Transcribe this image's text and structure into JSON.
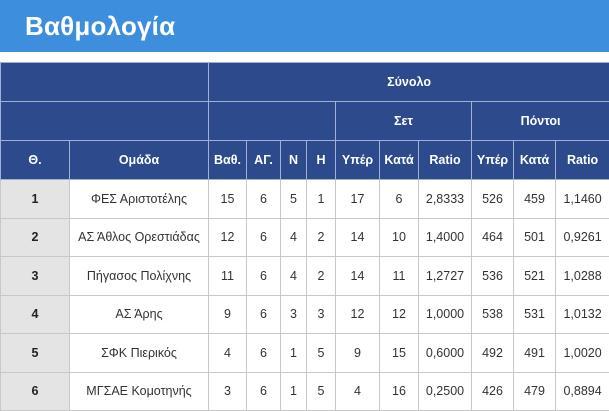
{
  "page": {
    "title": "Βαθμολογία"
  },
  "table": {
    "group_total": "Σύνολο",
    "group_sets": "Σετ",
    "group_points": "Πόντοι",
    "columns": {
      "pos": "Θ.",
      "team": "Ομάδα",
      "pts": "Βαθ.",
      "played": "ΑΓ.",
      "won": "Ν",
      "lost": "Η",
      "sets_for": "Υπέρ",
      "sets_against": "Κατά",
      "sets_ratio": "Ratio",
      "points_for": "Υπέρ",
      "points_against": "Κατά",
      "points_ratio": "Ratio"
    },
    "rows": [
      {
        "pos": "1",
        "team": "ΦΕΣ Αριστοτέλης",
        "pts": "15",
        "played": "6",
        "won": "5",
        "lost": "1",
        "sets_for": "17",
        "sets_against": "6",
        "sets_ratio": "2,8333",
        "points_for": "526",
        "points_against": "459",
        "points_ratio": "1,1460"
      },
      {
        "pos": "2",
        "team": "ΑΣ Άθλος Ορεστιάδας",
        "pts": "12",
        "played": "6",
        "won": "4",
        "lost": "2",
        "sets_for": "14",
        "sets_against": "10",
        "sets_ratio": "1,4000",
        "points_for": "464",
        "points_against": "501",
        "points_ratio": "0,9261"
      },
      {
        "pos": "3",
        "team": "Πήγασος Πολίχνης",
        "pts": "11",
        "played": "6",
        "won": "4",
        "lost": "2",
        "sets_for": "14",
        "sets_against": "11",
        "sets_ratio": "1,2727",
        "points_for": "536",
        "points_against": "521",
        "points_ratio": "1,0288"
      },
      {
        "pos": "4",
        "team": "ΑΣ Άρης",
        "pts": "9",
        "played": "6",
        "won": "3",
        "lost": "3",
        "sets_for": "12",
        "sets_against": "12",
        "sets_ratio": "1,0000",
        "points_for": "538",
        "points_against": "531",
        "points_ratio": "1,0132"
      },
      {
        "pos": "5",
        "team": "ΣΦΚ Πιερικός",
        "pts": "4",
        "played": "6",
        "won": "1",
        "lost": "5",
        "sets_for": "9",
        "sets_against": "15",
        "sets_ratio": "0,6000",
        "points_for": "492",
        "points_against": "491",
        "points_ratio": "1,0020"
      },
      {
        "pos": "6",
        "team": "ΜΓΣΑΕ Κομοτηνής",
        "pts": "3",
        "played": "6",
        "won": "1",
        "lost": "5",
        "sets_for": "4",
        "sets_against": "16",
        "sets_ratio": "0,2500",
        "points_for": "426",
        "points_against": "479",
        "points_ratio": "0,8894"
      }
    ]
  },
  "colors": {
    "title_bar": "#3d8fdd",
    "header_bg": "#2c4a8c",
    "pos_cell_bg": "#e4e4e4"
  }
}
